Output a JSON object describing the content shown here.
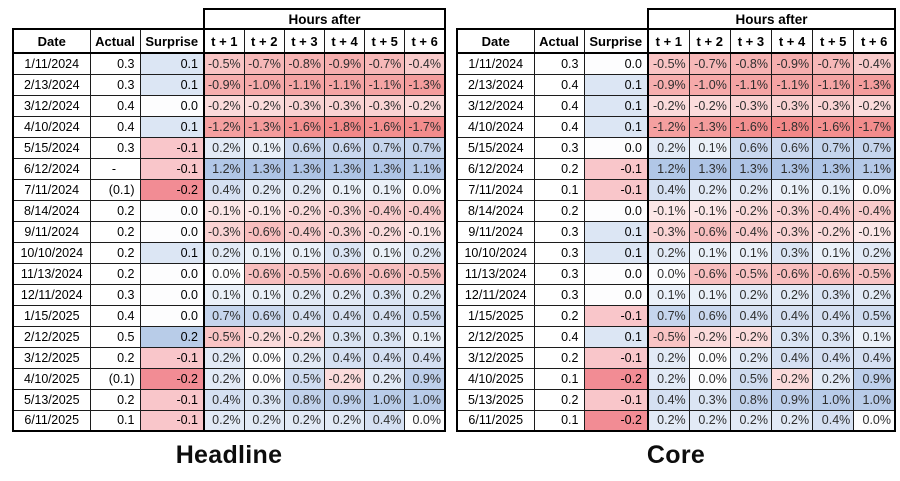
{
  "chart_data": [
    {
      "type": "heatmap",
      "title": "Headline",
      "group_header": "Hours after",
      "columns": [
        "Date",
        "Actual",
        "Surprise"
      ],
      "t_columns": [
        "t + 1",
        "t + 2",
        "t + 3",
        "t + 4",
        "t + 5",
        "t + 6"
      ],
      "value_format": "percent_1dp",
      "surprise_scale": {
        "min": -0.2,
        "max": 0.2
      },
      "hours_scale": {
        "min": -1.8,
        "max": 1.3
      },
      "rows": [
        {
          "date": "1/11/2024",
          "actual": "0.3",
          "surprise": 0.1,
          "hours": [
            -0.5,
            -0.7,
            -0.8,
            -0.9,
            -0.7,
            -0.4
          ]
        },
        {
          "date": "2/13/2024",
          "actual": "0.3",
          "surprise": 0.1,
          "hours": [
            -0.9,
            -1.0,
            -1.1,
            -1.1,
            -1.1,
            -1.3
          ]
        },
        {
          "date": "3/12/2024",
          "actual": "0.4",
          "surprise": 0.0,
          "hours": [
            -0.2,
            -0.2,
            -0.3,
            -0.3,
            -0.3,
            -0.2
          ]
        },
        {
          "date": "4/10/2024",
          "actual": "0.4",
          "surprise": 0.1,
          "hours": [
            -1.2,
            -1.3,
            -1.6,
            -1.8,
            -1.6,
            -1.7
          ]
        },
        {
          "date": "5/15/2024",
          "actual": "0.3",
          "surprise": -0.1,
          "hours": [
            0.2,
            0.1,
            0.6,
            0.6,
            0.7,
            0.7
          ]
        },
        {
          "date": "6/12/2024",
          "actual": "-",
          "surprise": -0.1,
          "hours": [
            1.2,
            1.3,
            1.3,
            1.3,
            1.3,
            1.1
          ]
        },
        {
          "date": "7/11/2024",
          "actual": "(0.1)",
          "surprise": -0.2,
          "hours": [
            0.4,
            0.2,
            0.2,
            0.1,
            0.1,
            0.0
          ]
        },
        {
          "date": "8/14/2024",
          "actual": "0.2",
          "surprise": 0.0,
          "hours": [
            -0.1,
            -0.1,
            -0.2,
            -0.3,
            -0.4,
            -0.4
          ]
        },
        {
          "date": "9/11/2024",
          "actual": "0.2",
          "surprise": 0.0,
          "hours": [
            -0.3,
            -0.6,
            -0.4,
            -0.3,
            -0.2,
            -0.1
          ]
        },
        {
          "date": "10/10/2024",
          "actual": "0.2",
          "surprise": 0.1,
          "hours": [
            0.2,
            0.1,
            0.1,
            0.3,
            0.1,
            0.2
          ]
        },
        {
          "date": "11/13/2024",
          "actual": "0.2",
          "surprise": 0.0,
          "hours": [
            0.0,
            -0.6,
            -0.5,
            -0.6,
            -0.6,
            -0.5
          ]
        },
        {
          "date": "12/11/2024",
          "actual": "0.3",
          "surprise": 0.0,
          "hours": [
            0.1,
            0.1,
            0.2,
            0.2,
            0.3,
            0.2
          ]
        },
        {
          "date": "1/15/2025",
          "actual": "0.4",
          "surprise": 0.0,
          "hours": [
            0.7,
            0.6,
            0.4,
            0.4,
            0.4,
            0.5
          ]
        },
        {
          "date": "2/12/2025",
          "actual": "0.5",
          "surprise": 0.2,
          "hours": [
            -0.5,
            -0.2,
            -0.2,
            0.3,
            0.3,
            0.1
          ]
        },
        {
          "date": "3/12/2025",
          "actual": "0.2",
          "surprise": -0.1,
          "hours": [
            0.2,
            0.0,
            0.2,
            0.4,
            0.4,
            0.4
          ]
        },
        {
          "date": "4/10/2025",
          "actual": "(0.1)",
          "surprise": -0.2,
          "hours": [
            0.2,
            0.0,
            0.5,
            -0.2,
            0.2,
            0.9
          ]
        },
        {
          "date": "5/13/2025",
          "actual": "0.2",
          "surprise": -0.1,
          "hours": [
            0.4,
            0.3,
            0.8,
            0.9,
            1.0,
            1.0
          ]
        },
        {
          "date": "6/11/2025",
          "actual": "0.1",
          "surprise": -0.1,
          "hours": [
            0.2,
            0.2,
            0.2,
            0.2,
            0.4,
            0.0
          ]
        }
      ]
    },
    {
      "type": "heatmap",
      "title": "Core",
      "group_header": "Hours after",
      "columns": [
        "Date",
        "Actual",
        "Surprise"
      ],
      "t_columns": [
        "t + 1",
        "t + 2",
        "t + 3",
        "t + 4",
        "t + 5",
        "t + 6"
      ],
      "value_format": "percent_1dp",
      "surprise_scale": {
        "min": -0.2,
        "max": 0.2
      },
      "hours_scale": {
        "min": -1.8,
        "max": 1.3
      },
      "rows": [
        {
          "date": "1/11/2024",
          "actual": "0.3",
          "surprise": 0.0,
          "hours": [
            -0.5,
            -0.7,
            -0.8,
            -0.9,
            -0.7,
            -0.4
          ]
        },
        {
          "date": "2/13/2024",
          "actual": "0.4",
          "surprise": 0.1,
          "hours": [
            -0.9,
            -1.0,
            -1.1,
            -1.1,
            -1.1,
            -1.3
          ]
        },
        {
          "date": "3/12/2024",
          "actual": "0.4",
          "surprise": 0.1,
          "hours": [
            -0.2,
            -0.2,
            -0.3,
            -0.3,
            -0.3,
            -0.2
          ]
        },
        {
          "date": "4/10/2024",
          "actual": "0.4",
          "surprise": 0.1,
          "hours": [
            -1.2,
            -1.3,
            -1.6,
            -1.8,
            -1.6,
            -1.7
          ]
        },
        {
          "date": "5/15/2024",
          "actual": "0.3",
          "surprise": 0.0,
          "hours": [
            0.2,
            0.1,
            0.6,
            0.6,
            0.7,
            0.7
          ]
        },
        {
          "date": "6/12/2024",
          "actual": "0.2",
          "surprise": -0.1,
          "hours": [
            1.2,
            1.3,
            1.3,
            1.3,
            1.3,
            1.1
          ]
        },
        {
          "date": "7/11/2024",
          "actual": "0.1",
          "surprise": -0.1,
          "hours": [
            0.4,
            0.2,
            0.2,
            0.1,
            0.1,
            0.0
          ]
        },
        {
          "date": "8/14/2024",
          "actual": "0.2",
          "surprise": 0.0,
          "hours": [
            -0.1,
            -0.1,
            -0.2,
            -0.3,
            -0.4,
            -0.4
          ]
        },
        {
          "date": "9/11/2024",
          "actual": "0.3",
          "surprise": 0.1,
          "hours": [
            -0.3,
            -0.6,
            -0.4,
            -0.3,
            -0.2,
            -0.1
          ]
        },
        {
          "date": "10/10/2024",
          "actual": "0.3",
          "surprise": 0.1,
          "hours": [
            0.2,
            0.1,
            0.1,
            0.3,
            0.1,
            0.2
          ]
        },
        {
          "date": "11/13/2024",
          "actual": "0.3",
          "surprise": 0.0,
          "hours": [
            0.0,
            -0.6,
            -0.5,
            -0.6,
            -0.6,
            -0.5
          ]
        },
        {
          "date": "12/11/2024",
          "actual": "0.3",
          "surprise": 0.0,
          "hours": [
            0.1,
            0.1,
            0.2,
            0.2,
            0.3,
            0.2
          ]
        },
        {
          "date": "1/15/2025",
          "actual": "0.2",
          "surprise": -0.1,
          "hours": [
            0.7,
            0.6,
            0.4,
            0.4,
            0.4,
            0.5
          ]
        },
        {
          "date": "2/12/2025",
          "actual": "0.4",
          "surprise": 0.1,
          "hours": [
            -0.5,
            -0.2,
            -0.2,
            0.3,
            0.3,
            0.1
          ]
        },
        {
          "date": "3/12/2025",
          "actual": "0.2",
          "surprise": -0.1,
          "hours": [
            0.2,
            0.0,
            0.2,
            0.4,
            0.4,
            0.4
          ]
        },
        {
          "date": "4/10/2025",
          "actual": "0.1",
          "surprise": -0.2,
          "hours": [
            0.2,
            0.0,
            0.5,
            -0.2,
            0.2,
            0.9
          ]
        },
        {
          "date": "5/13/2025",
          "actual": "0.2",
          "surprise": -0.1,
          "hours": [
            0.4,
            0.3,
            0.8,
            0.9,
            1.0,
            1.0
          ]
        },
        {
          "date": "6/11/2025",
          "actual": "0.1",
          "surprise": -0.2,
          "hours": [
            0.2,
            0.2,
            0.2,
            0.2,
            0.4,
            0.0
          ]
        }
      ]
    }
  ],
  "colors": {
    "hours_positive_blue": "#aec4e6",
    "hours_negative_red": "#f28888",
    "surprise_positive_blue": "#b8cce8",
    "surprise_negative_red": "#f28c94",
    "zero_cell": "#fdfdfe",
    "border": "#000000",
    "matrix_text": "#2e2e2e"
  }
}
